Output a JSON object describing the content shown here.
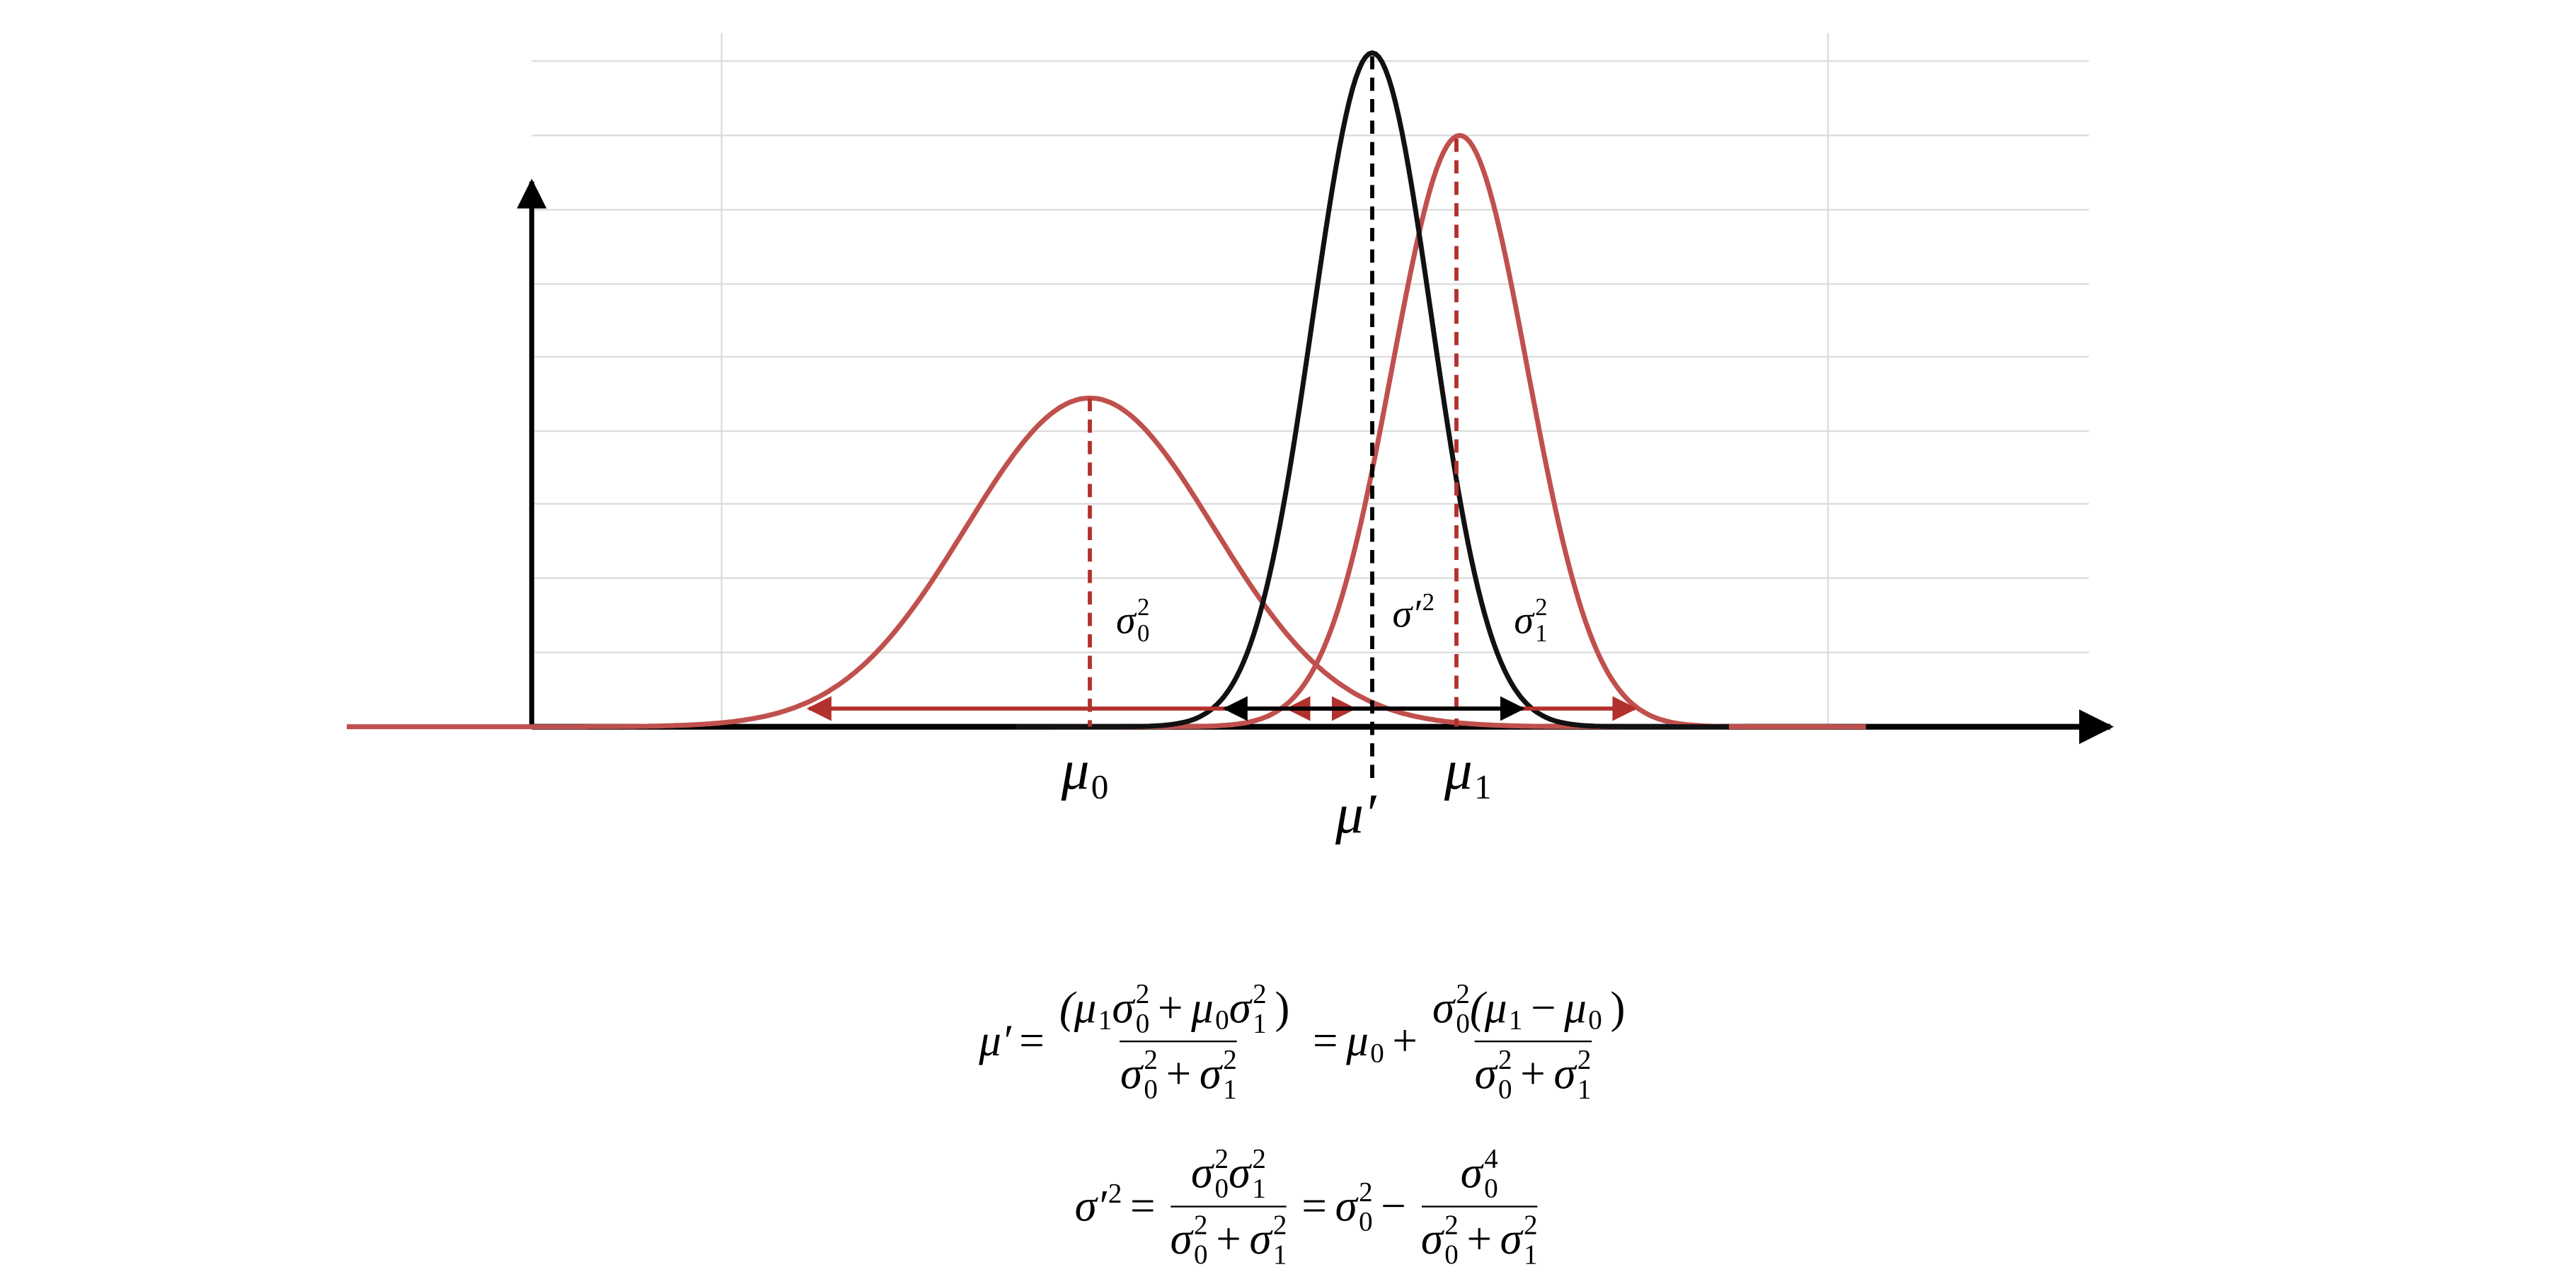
{
  "labels": [
    {
      "b": "μ",
      "sub": "0"
    },
    {
      "b": "μ",
      "sub": "1"
    },
    {
      "b": "μ′"
    },
    {
      "b": "σ",
      "sub": "0",
      "sup": "2"
    },
    {
      "b": "σ′",
      "sup": "2"
    },
    {
      "b": "σ",
      "sub": "1",
      "sup": "2"
    }
  ],
  "equations": [
    [
      {
        "b": "μ′"
      },
      {
        "b": "="
      },
      {
        "frac": {
          "num": [
            {
              "b": "(μ",
              "sub": "1"
            },
            {
              "b": "σ",
              "sub": "0",
              "sup": "2"
            },
            {
              "b": "+"
            },
            {
              "b": "μ",
              "sub": "0"
            },
            {
              "b": "σ",
              "sub": "1",
              "sup": "2"
            },
            {
              "b": ")"
            }
          ],
          "den": [
            {
              "b": "σ",
              "sub": "0",
              "sup": "2"
            },
            {
              "b": "+"
            },
            {
              "b": "σ",
              "sub": "1",
              "sup": "2"
            }
          ]
        }
      },
      {
        "b": "="
      },
      {
        "b": "μ",
        "sub": "0"
      },
      {
        "b": "+"
      },
      {
        "frac": {
          "num": [
            {
              "b": "σ",
              "sub": "0",
              "sup": "2"
            },
            {
              "b": "(μ",
              "sub": "1"
            },
            {
              "b": "−"
            },
            {
              "b": "μ",
              "sub": "0"
            },
            {
              "b": ")"
            }
          ],
          "den": [
            {
              "b": "σ",
              "sub": "0",
              "sup": "2"
            },
            {
              "b": "+"
            },
            {
              "b": "σ",
              "sub": "1",
              "sup": "2"
            }
          ]
        }
      }
    ],
    [
      {
        "b": "σ′",
        "sup": "2"
      },
      {
        "b": "="
      },
      {
        "frac": {
          "num": [
            {
              "b": "σ",
              "sub": "0",
              "sup": "2"
            },
            {
              "b": "σ",
              "sub": "1",
              "sup": "2"
            }
          ],
          "den": [
            {
              "b": "σ",
              "sub": "0",
              "sup": "2"
            },
            {
              "b": "+"
            },
            {
              "b": "σ",
              "sub": "1",
              "sup": "2"
            }
          ]
        }
      },
      {
        "b": "="
      },
      {
        "b": "σ",
        "sub": "0",
        "sup": "2"
      },
      {
        "b": "−"
      },
      {
        "frac": {
          "num": [
            {
              "b": "σ",
              "sub": "0",
              "sup": "4"
            }
          ],
          "den": [
            {
              "b": "σ",
              "sub": "0",
              "sup": "2"
            },
            {
              "b": "+"
            },
            {
              "b": "σ",
              "sub": "1",
              "sup": "2"
            }
          ]
        }
      }
    ]
  ]
}
